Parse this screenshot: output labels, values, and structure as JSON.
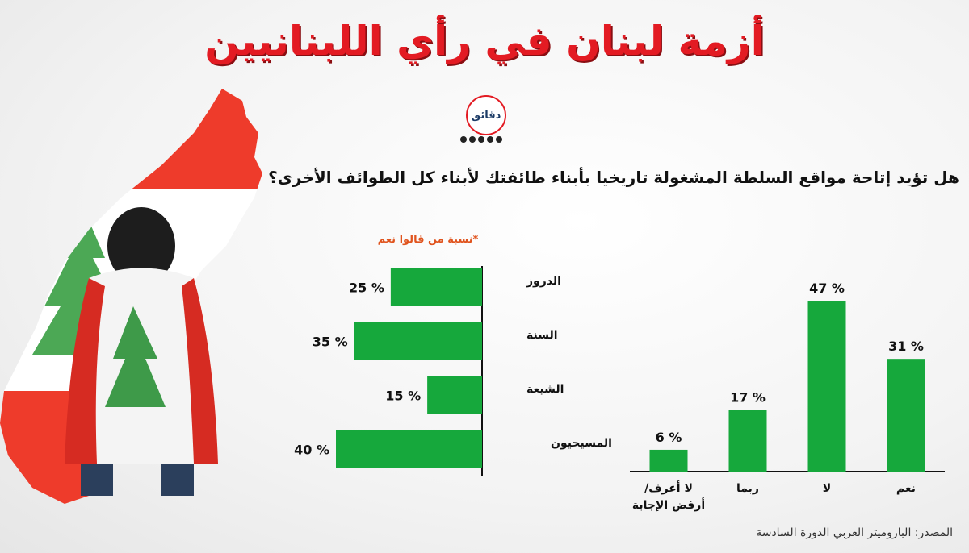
{
  "header": {
    "title": "أزمة لبنان في رأي اللبنانيين",
    "logo_text": "دقائق"
  },
  "question": "هل تؤيد إتاحة مواقع السلطة المشغولة تاريخيا بأبناء طائفتك لأبناء كل الطوائف الأخرى؟",
  "note": "*نسبة من قالوا نعم",
  "source": "المصدر: الباروميتر العربي الدورة السادسة",
  "colors": {
    "bar": "#16a83c",
    "title": "#e31b23",
    "note": "#e0541e"
  },
  "chart_data": [
    {
      "type": "bar",
      "orientation": "horizontal",
      "categories": [
        "الدروز",
        "السنة",
        "الشيعة",
        "المسيحيون"
      ],
      "values": [
        25,
        35,
        15,
        40
      ],
      "value_labels": [
        "25 %",
        "35 %",
        "15 %",
        "40 %"
      ],
      "unit": "%",
      "xlim": [
        0,
        40
      ]
    },
    {
      "type": "bar",
      "orientation": "vertical",
      "categories": [
        "نعم",
        "لا",
        "ربما",
        "لا أعرف/ أرفض الإجابة"
      ],
      "values": [
        31,
        47,
        17,
        6
      ],
      "value_labels": [
        "31 %",
        "47 %",
        "17 %",
        "6 %"
      ],
      "unit": "%",
      "ylim": [
        0,
        47
      ]
    }
  ]
}
